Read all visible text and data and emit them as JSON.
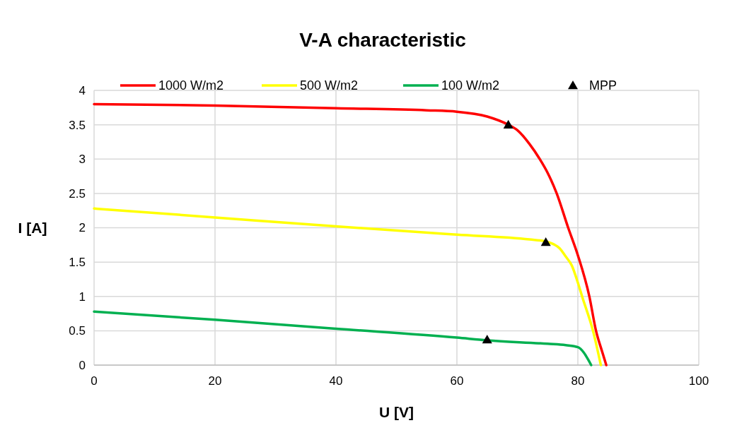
{
  "chart_data": {
    "type": "line",
    "title": "V-A characteristic",
    "xlabel": "U [V]",
    "ylabel": "I [A]",
    "xlim": [
      0,
      100
    ],
    "xticks": [
      0,
      20,
      40,
      60,
      80,
      100
    ],
    "ylim": [
      0,
      4
    ],
    "yticks": [
      0,
      0.5,
      1,
      1.5,
      2,
      2.5,
      3,
      3.5,
      4
    ],
    "grid": true,
    "legend": "top",
    "marker": "none",
    "line_style": "solid",
    "series": [
      {
        "name": "1000 W/m2",
        "color": "#ff0000",
        "x": [
          0,
          20,
          40,
          55,
          60,
          65,
          68.5,
          70,
          72,
          73.7,
          75,
          76.5,
          78.4,
          80,
          81.9,
          83,
          84,
          84.7
        ],
        "values": [
          3.8,
          3.78,
          3.74,
          3.71,
          3.69,
          3.62,
          3.5,
          3.42,
          3.22,
          3,
          2.8,
          2.5,
          2,
          1.6,
          1,
          0.5,
          0.2,
          0
        ]
      },
      {
        "name": "500 W/m2",
        "color": "#ffff00",
        "x": [
          0,
          20,
          40,
          60,
          72,
          74.7,
          76,
          77,
          78,
          79,
          80,
          80.7,
          82.5,
          83.8
        ],
        "values": [
          2.28,
          2.15,
          2.02,
          1.9,
          1.83,
          1.8,
          1.76,
          1.7,
          1.58,
          1.45,
          1.2,
          1,
          0.5,
          0
        ]
      },
      {
        "name": "100 W/m2",
        "color": "#00b050",
        "x": [
          0,
          20,
          40,
          60,
          65,
          75,
          78,
          80,
          81,
          81.7,
          82.2
        ],
        "values": [
          0.78,
          0.66,
          0.53,
          0.4,
          0.36,
          0.31,
          0.29,
          0.26,
          0.18,
          0.08,
          0
        ]
      },
      {
        "name": "MPP",
        "type": "scatter",
        "color": "#000000",
        "marker": "triangle",
        "x": [
          68.5,
          74.7,
          65
        ],
        "values": [
          3.5,
          1.79,
          0.37
        ]
      }
    ]
  }
}
